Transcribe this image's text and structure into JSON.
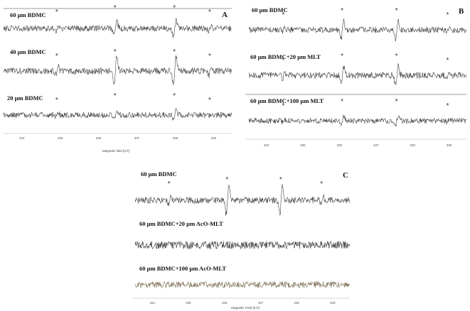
{
  "figure": {
    "panels": [
      {
        "id": "A",
        "label": "A",
        "axis_title": "Magnetic field [mT]",
        "ticks": [
          "334",
          "335",
          "336",
          "337",
          "338",
          "339"
        ],
        "traces": [
          {
            "label": "60 µm BDMC",
            "color": "#444444",
            "amplitude": 5,
            "noise": 4.2,
            "stars": [
              0.235,
              0.49,
              0.75,
              0.905
            ],
            "star_kinds": [
              "small",
              "big",
              "big",
              "small"
            ]
          },
          {
            "label": "40 µm BDMC",
            "color": "#444444",
            "amplitude": 9,
            "noise": 4.5,
            "stars": [
              0.235,
              0.49,
              0.75,
              0.905
            ],
            "star_kinds": [
              "small",
              "big",
              "big",
              "small"
            ]
          },
          {
            "label": "20 µm BDMC",
            "color": "#444444",
            "amplitude": 3,
            "noise": 4.0,
            "stars": [
              0.235,
              0.49,
              0.75,
              0.905
            ],
            "star_kinds": [
              "small",
              "big",
              "big",
              "small"
            ]
          }
        ]
      },
      {
        "id": "B",
        "label": "B",
        "axis_title": "",
        "ticks": [
          "334",
          "335",
          "336",
          "337",
          "338",
          "339"
        ],
        "traces": [
          {
            "label": "60 µm BDMC",
            "color": "#444444",
            "amplitude": 6,
            "noise": 4.2,
            "stars": [
              0.16,
              0.43,
              0.68,
              0.915
            ],
            "star_kinds": [
              "small",
              "big",
              "big",
              "small"
            ]
          },
          {
            "label": "60 µm BDMC+20 µm MLT",
            "color": "#444444",
            "amplitude": 6,
            "noise": 4.4,
            "stars": [
              0.16,
              0.43,
              0.68,
              0.915
            ],
            "star_kinds": [
              "small",
              "big",
              "big",
              "small"
            ]
          },
          {
            "label": "60 µm BDMC+100 µm MLT",
            "color": "#444444",
            "amplitude": 3,
            "noise": 3.8,
            "stars": [
              0.16,
              0.43,
              0.68,
              0.915
            ],
            "star_kinds": [
              "small",
              "big",
              "big",
              "small"
            ]
          }
        ]
      },
      {
        "id": "C",
        "label": "C",
        "axis_title": "Magnetic Field [mT]",
        "ticks": [
          "334",
          "335",
          "336",
          "337",
          "338",
          "339"
        ],
        "traces": [
          {
            "label": "60 µm BDMC",
            "color": "#444444",
            "amplitude": 9,
            "noise": 4.4,
            "stars": [
              0.16,
              0.43,
              0.68,
              0.87
            ],
            "star_kinds": [
              "small",
              "big",
              "big",
              "small"
            ]
          },
          {
            "label": "60 µm BDMC+20 µm AcO-MLT",
            "color": "#333333",
            "amplitude": 0,
            "noise": 5.5,
            "stars": [],
            "star_kinds": []
          },
          {
            "label": "60 µm BDMC+100 µm AcO-MLT",
            "color": "#7a6a50",
            "amplitude": 0,
            "noise": 4.5,
            "stars": [],
            "star_kinds": []
          }
        ]
      }
    ],
    "star_symbol": "*"
  }
}
